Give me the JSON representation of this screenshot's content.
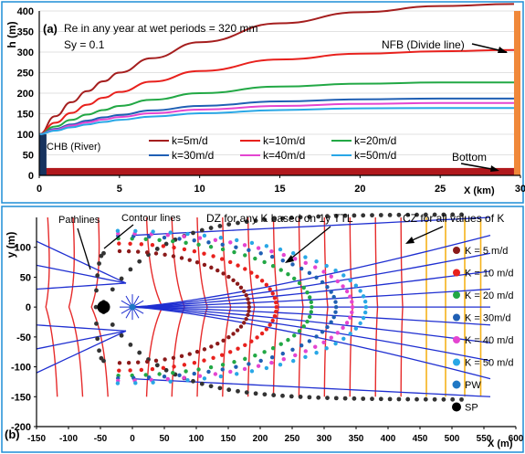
{
  "chart_data": [
    {
      "panel_label": "(a)",
      "type": "line",
      "ylabel": "h (m)",
      "xlabel": "X (km)",
      "xlim": [
        0,
        30
      ],
      "ylim": [
        0,
        400
      ],
      "xticks": [
        0,
        5,
        10,
        15,
        20,
        25,
        30
      ],
      "yticks": [
        0,
        50,
        100,
        150,
        200,
        250,
        300,
        350,
        400
      ],
      "annotations": [
        "Re in any year at wet periods = 320 mm",
        "Sy = 0.1",
        "NFB (Divide line)",
        "CHB (River)",
        "Bottom"
      ],
      "legend_position": "bottom-center",
      "series": [
        {
          "name": "k=5m/d",
          "color": "#a51e1e",
          "x": [
            0,
            1,
            2,
            3,
            4,
            5,
            7,
            10,
            15,
            20,
            25,
            30
          ],
          "y": [
            100,
            144,
            178,
            205,
            229,
            250,
            285,
            324,
            370,
            397,
            412,
            417
          ]
        },
        {
          "name": "k=10m/d",
          "color": "#e8211d",
          "x": [
            0,
            1,
            2,
            3,
            4,
            5,
            7,
            10,
            15,
            20,
            25,
            30
          ],
          "y": [
            100,
            128,
            152,
            172,
            189,
            203,
            228,
            254,
            282,
            296,
            302,
            305
          ]
        },
        {
          "name": "k=20m/d",
          "color": "#22a845",
          "x": [
            0,
            1,
            2,
            3,
            4,
            5,
            7,
            10,
            15,
            20,
            25,
            30
          ],
          "y": [
            100,
            119,
            135,
            148,
            159,
            169,
            184,
            200,
            216,
            223,
            226,
            226
          ]
        },
        {
          "name": "k=30m/d",
          "color": "#1f5fb4",
          "x": [
            0,
            1,
            2,
            3,
            4,
            5,
            7,
            10,
            15,
            20,
            25,
            30
          ],
          "y": [
            100,
            113,
            124,
            133,
            141,
            147,
            158,
            169,
            180,
            185,
            187,
            187
          ]
        },
        {
          "name": "k=40m/d",
          "color": "#e445d1",
          "x": [
            0,
            1,
            2,
            3,
            4,
            5,
            7,
            10,
            15,
            20,
            25,
            30
          ],
          "y": [
            100,
            111,
            121,
            129,
            136,
            142,
            151,
            160,
            169,
            174,
            176,
            176
          ]
        },
        {
          "name": "k=50m/d",
          "color": "#29a7e6",
          "x": [
            0,
            1,
            2,
            3,
            4,
            5,
            7,
            10,
            15,
            20,
            25,
            30
          ],
          "y": [
            100,
            109,
            117,
            124,
            130,
            135,
            143,
            151,
            159,
            163,
            164,
            164
          ]
        }
      ],
      "boundary_colors": {
        "chb": "#17335f",
        "nfb": "#f0883a",
        "bottom": "#b0181c"
      }
    },
    {
      "panel_label": "(b)",
      "type": "scatter",
      "ylabel": "y (m)",
      "xlabel": "X (m)",
      "xlim": [
        -150,
        600
      ],
      "ylim": [
        -200,
        150
      ],
      "xticks": [
        -150,
        -100,
        -50,
        0,
        50,
        100,
        150,
        200,
        250,
        300,
        350,
        400,
        450,
        500,
        550,
        600
      ],
      "yticks": [
        -200,
        -150,
        -100,
        -50,
        0,
        50,
        100
      ],
      "annotations": [
        "Pathlines",
        "Contour lines",
        "DZ for any K based on 1y TTL",
        "CZ for all values of K"
      ],
      "legend_position": "right",
      "series": [
        {
          "name": "K = 5 m/d",
          "color": "#8b1a1a",
          "vertex_x": 215,
          "y_half_width": 110,
          "back_x": -40
        },
        {
          "name": "K = 10 m/d",
          "color": "#e8211d",
          "vertex_x": 265,
          "y_half_width": 125,
          "back_x": -42
        },
        {
          "name": "K = 20 m/d",
          "color": "#22a845",
          "vertex_x": 330,
          "y_half_width": 135,
          "back_x": -44
        },
        {
          "name": "K = 30m/d",
          "color": "#1f5fb4",
          "vertex_x": 375,
          "y_half_width": 140,
          "back_x": -45
        },
        {
          "name": "K = 40 m/d",
          "color": "#e445d1",
          "vertex_x": 405,
          "y_half_width": 145,
          "back_x": -45
        },
        {
          "name": "K = 50 m/d",
          "color": "#29a7e6",
          "vertex_x": 430,
          "y_half_width": 150,
          "back_x": -46
        }
      ],
      "pumping_well": {
        "name": "PW",
        "x": 0,
        "y": 0,
        "color": "#1f77c4"
      },
      "stagnation_point": {
        "name": "SP",
        "x": -45,
        "y": 0,
        "color": "#000000"
      },
      "capture_zone_color": "#333333",
      "contour_color": "#e62b2b",
      "pathline_color": "#1f2fd1",
      "far_contour_color": "#f5b21b"
    }
  ]
}
